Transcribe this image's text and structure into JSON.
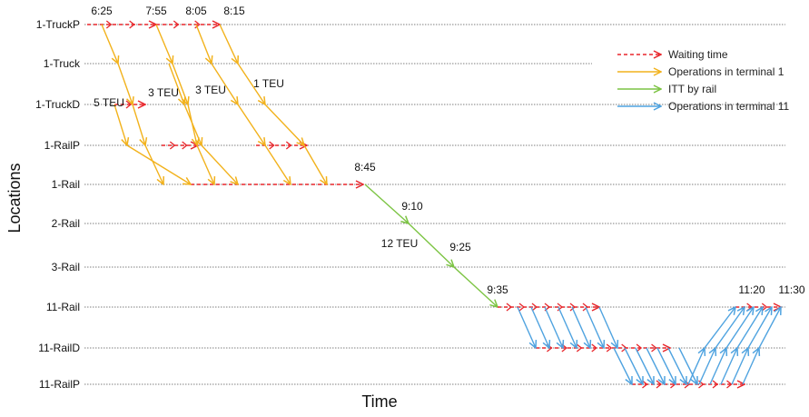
{
  "axes": {
    "x_title": "Time",
    "y_title": "Locations"
  },
  "locations": [
    "1-TruckP",
    "1-Truck",
    "1-TruckD",
    "1-RailP",
    "1-Rail",
    "2-Rail",
    "3-Rail",
    "11-Rail",
    "11-RailD",
    "11-RailP"
  ],
  "colors": {
    "waiting": "#e8262b",
    "terminal1": "#f2b21c",
    "itt": "#7cc443",
    "terminal11": "#4fa3e0",
    "grid": "#555555"
  },
  "legend": [
    {
      "kind": "waiting",
      "label": "Waiting time"
    },
    {
      "kind": "terminal1",
      "label": "Operations in terminal 1"
    },
    {
      "kind": "itt",
      "label": "ITT by rail"
    },
    {
      "kind": "terminal11",
      "label": "Operations in terminal 11"
    }
  ],
  "time_labels": [
    "6:25",
    "7:55",
    "8:05",
    "8:15",
    "8:45",
    "9:10",
    "9:25",
    "9:35",
    "11:20",
    "11:30"
  ],
  "teu_labels": [
    "5 TEU",
    "3 TEU",
    "3 TEU",
    "1 TEU",
    "12 TEU"
  ]
}
